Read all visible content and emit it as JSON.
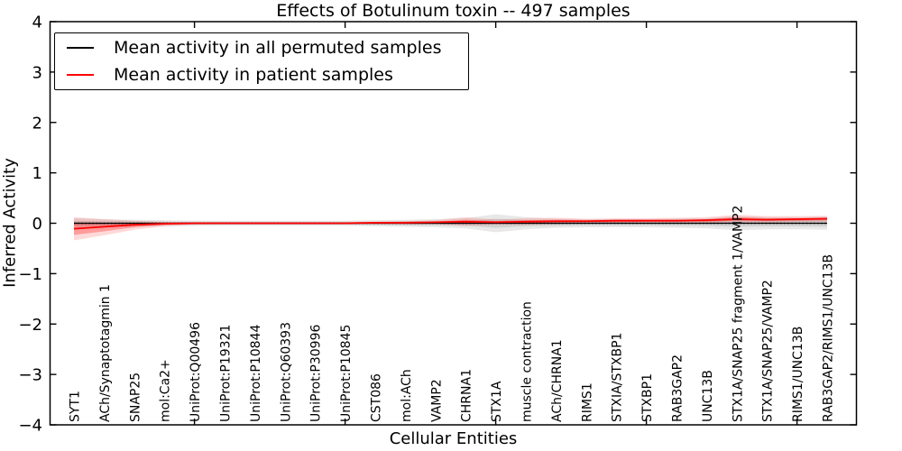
{
  "figure": {
    "title": "Effects of Botulinum toxin -- 497 samples",
    "xlabel": "Cellular Entities",
    "ylabel": "Inferred Activity"
  },
  "legend": {
    "position": "upper left",
    "items": [
      {
        "label": "Mean activity in all permuted samples",
        "color": "#000000"
      },
      {
        "label": "Mean activity in patient samples",
        "color": "#ff0000"
      }
    ]
  },
  "chart_data": {
    "type": "line",
    "title": "Effects of Botulinum toxin -- 497 samples",
    "xlabel": "Cellular Entities",
    "ylabel": "Inferred Activity",
    "ylim": [
      -4,
      4
    ],
    "y_ticks": [
      4,
      3,
      2,
      1,
      0,
      -1,
      -2,
      -3,
      -4
    ],
    "x_major_ticks_at": [
      5,
      10,
      15,
      20,
      25
    ],
    "grid": false,
    "zero_line": 0,
    "categories": [
      "SYT1",
      "ACh/Synaptotagmin 1",
      "SNAP25",
      "mol:Ca2+",
      "UniProt:Q00496",
      "UniProt:P19321",
      "UniProt:P10844",
      "UniProt:Q60393",
      "UniProt:P30996",
      "UniProt:P10845",
      "CST086",
      "mol:ACh",
      "VAMP2",
      "CHRNA1",
      "STX1A",
      "muscle contraction",
      "ACh/CHRNA1",
      "RIMS1",
      "STXIA/STXBP1",
      "STXBP1",
      "RAB3GAP2",
      "UNC13B",
      "STX1A/SNAP25 fragment 1/VAMP2",
      "STX1A/SNAP25/VAMP2",
      "RIMS1/UNC13B",
      "RAB3GAP2/RIMS1/UNC13B"
    ],
    "series": [
      {
        "name": "Mean activity in all permuted samples",
        "color": "#000000",
        "values": [
          0,
          0,
          0,
          0,
          0,
          0,
          0,
          0,
          0,
          0,
          0,
          0,
          0,
          0,
          0,
          0,
          0,
          0,
          0,
          0,
          0,
          0,
          0,
          0,
          0,
          0
        ]
      },
      {
        "name": "Mean activity in patient samples",
        "color": "#ff0000",
        "values": [
          -0.11,
          -0.07,
          -0.03,
          -0.01,
          0,
          0,
          0,
          0,
          0,
          0,
          0.01,
          0.01,
          0.02,
          0.03,
          0.02,
          0.03,
          0.04,
          0.04,
          0.05,
          0.05,
          0.05,
          0.06,
          0.08,
          0.07,
          0.08,
          0.09
        ]
      }
    ],
    "bands": [
      {
        "name": "permuted-outer-range",
        "color": "rgba(128,128,128,0.18)",
        "upper": [
          0.1,
          0.08,
          0.07,
          0.06,
          0.05,
          0.05,
          0.05,
          0.05,
          0.05,
          0.05,
          0.06,
          0.07,
          0.08,
          0.1,
          0.18,
          0.12,
          0.09,
          0.08,
          0.08,
          0.08,
          0.09,
          0.1,
          0.14,
          0.12,
          0.12,
          0.13
        ],
        "lower": [
          -0.1,
          -0.08,
          -0.07,
          -0.06,
          -0.05,
          -0.05,
          -0.05,
          -0.05,
          -0.05,
          -0.05,
          -0.06,
          -0.07,
          -0.08,
          -0.1,
          -0.18,
          -0.12,
          -0.09,
          -0.08,
          -0.08,
          -0.08,
          -0.09,
          -0.1,
          -0.14,
          -0.12,
          -0.12,
          -0.13
        ]
      },
      {
        "name": "permuted-inner-range",
        "color": "rgba(128,128,128,0.22)",
        "upper": [
          0.05,
          0.04,
          0.04,
          0.03,
          0.03,
          0.03,
          0.03,
          0.03,
          0.03,
          0.03,
          0.03,
          0.04,
          0.04,
          0.05,
          0.09,
          0.06,
          0.05,
          0.04,
          0.04,
          0.04,
          0.05,
          0.05,
          0.07,
          0.06,
          0.06,
          0.07
        ],
        "lower": [
          -0.05,
          -0.04,
          -0.04,
          -0.03,
          -0.03,
          -0.03,
          -0.03,
          -0.03,
          -0.03,
          -0.03,
          -0.03,
          -0.04,
          -0.04,
          -0.05,
          -0.09,
          -0.06,
          -0.05,
          -0.04,
          -0.04,
          -0.04,
          -0.05,
          -0.05,
          -0.07,
          -0.06,
          -0.06,
          -0.07
        ]
      },
      {
        "name": "patient-outer-range",
        "color": "rgba(255,0,0,0.15)",
        "upper": [
          0.12,
          0.08,
          0.05,
          0.03,
          0.02,
          0.02,
          0.02,
          0.02,
          0.02,
          0.02,
          0.03,
          0.04,
          0.06,
          0.12,
          0.07,
          0.1,
          0.11,
          0.09,
          0.1,
          0.1,
          0.11,
          0.12,
          0.17,
          0.14,
          0.14,
          0.15
        ],
        "lower": [
          -0.34,
          -0.24,
          -0.13,
          -0.06,
          -0.03,
          -0.02,
          -0.02,
          -0.02,
          -0.02,
          -0.02,
          -0.02,
          -0.02,
          -0.02,
          -0.05,
          -0.03,
          -0.03,
          -0.02,
          -0.01,
          -0.01,
          -0.01,
          -0.01,
          0.0,
          0.01,
          0.01,
          0.02,
          0.03
        ]
      },
      {
        "name": "patient-inner-range",
        "color": "rgba(255,0,0,0.28)",
        "upper": [
          0.02,
          0.01,
          0.01,
          0.01,
          0.01,
          0.01,
          0.01,
          0.01,
          0.01,
          0.01,
          0.02,
          0.02,
          0.03,
          0.07,
          0.04,
          0.06,
          0.07,
          0.06,
          0.07,
          0.07,
          0.07,
          0.08,
          0.12,
          0.1,
          0.1,
          0.11
        ],
        "lower": [
          -0.23,
          -0.16,
          -0.08,
          -0.03,
          -0.01,
          -0.01,
          -0.01,
          -0.01,
          -0.01,
          -0.01,
          0.0,
          0.0,
          0.0,
          0.0,
          0.0,
          0.01,
          0.01,
          0.02,
          0.02,
          0.03,
          0.03,
          0.03,
          0.05,
          0.05,
          0.05,
          0.06
        ]
      }
    ]
  }
}
